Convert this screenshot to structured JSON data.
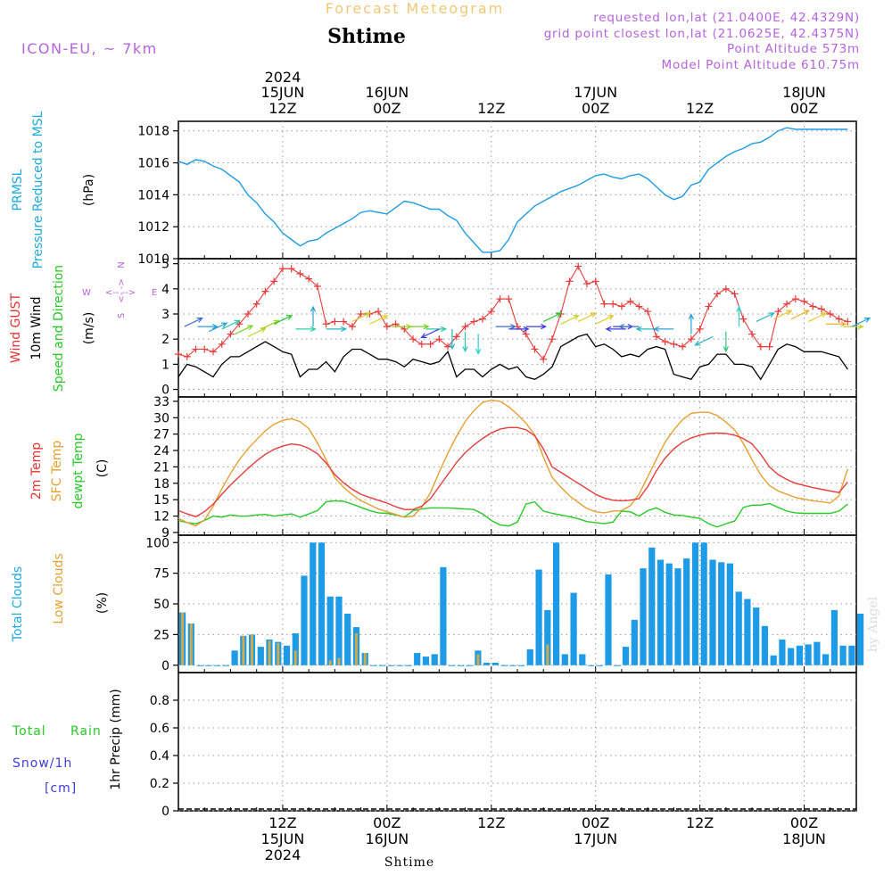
{
  "header": {
    "title": "Forecast Meteogram",
    "location": "Shtime",
    "model": "ICON-EU, ~ 7km",
    "requested": "requested lon,lat (21.0400E, 42.4329N)",
    "gridpoint": "grid point closest lon,lat (21.0625E, 42.4375N)",
    "point_alt": "Point Altitude 573m",
    "model_alt": "Model Point Altitude 610.75m",
    "credit": "by Angel",
    "bottom_label": "Shtime"
  },
  "time_axis": {
    "top_labels": [
      {
        "hour": 12,
        "l1": "15JUN",
        "l2": "12Z",
        "year": "2024"
      },
      {
        "hour": 24,
        "l1": "16JUN",
        "l2": "00Z"
      },
      {
        "hour": 36,
        "l1": "",
        "l2": "12Z"
      },
      {
        "hour": 48,
        "l1": "17JUN",
        "l2": "00Z"
      },
      {
        "hour": 60,
        "l1": "",
        "l2": "12Z"
      },
      {
        "hour": 72,
        "l1": "18JUN",
        "l2": "00Z"
      }
    ],
    "bottom_labels": [
      {
        "hour": 12,
        "l1": "12Z",
        "l2": "15JUN",
        "year": "2024"
      },
      {
        "hour": 24,
        "l1": "00Z",
        "l2": "16JUN"
      },
      {
        "hour": 36,
        "l1": "12Z",
        "l2": ""
      },
      {
        "hour": 48,
        "l1": "00Z",
        "l2": "17JUN"
      },
      {
        "hour": 60,
        "l1": "12Z",
        "l2": ""
      },
      {
        "hour": 72,
        "l1": "00Z",
        "l2": "18JUN"
      }
    ]
  },
  "panel_labels": {
    "pressure": [
      "PRMSL",
      "Pressure Reduced to MSL",
      "(hPa)"
    ],
    "wind": [
      "Wind GUST",
      "10m Wind",
      "Speed and Direction",
      "(m/s)"
    ],
    "compass": {
      "n": "N",
      "s": "S",
      "w": "W",
      "e": "E"
    },
    "temp": [
      "2m Temp",
      "SFC Temp",
      "dewpt Temp",
      "(C)"
    ],
    "clouds": [
      "Total Clouds",
      "Low Clouds",
      "(%)"
    ],
    "precip": [
      "Total",
      "Rain",
      "Snow/1h",
      "[cm]",
      "1hr Precip (mm)"
    ]
  },
  "colors": {
    "pressure": "#1e9be6",
    "gust": "#e63c3c",
    "wind": "#000000",
    "t2m": "#e63c3c",
    "tsfc": "#e6a032",
    "dewpt": "#28c828",
    "total_clouds": "#1e9be6",
    "low_clouds": "#d2aa46",
    "label_cyan": "#1eaadc",
    "label_red": "#e63232",
    "label_green": "#28c828",
    "label_orange": "#e6a032",
    "label_purple": "#b464dc",
    "label_blue": "#3c3cdc",
    "title_tan": "#f0c878"
  },
  "chart_data": [
    {
      "type": "line",
      "name": "pressure",
      "x_range": [
        0,
        78
      ],
      "ylim": [
        1010,
        1018.6
      ],
      "yticks": [
        1010,
        1012,
        1014,
        1016,
        1018
      ],
      "x": [
        0,
        1,
        2,
        3,
        4,
        5,
        6,
        7,
        8,
        9,
        10,
        11,
        12,
        13,
        14,
        15,
        16,
        17,
        18,
        19,
        20,
        21,
        22,
        23,
        24,
        25,
        26,
        27,
        28,
        29,
        30,
        31,
        32,
        33,
        34,
        35,
        36,
        37,
        38,
        39,
        40,
        41,
        42,
        43,
        44,
        45,
        46,
        47,
        48,
        49,
        50,
        51,
        52,
        53,
        54,
        55,
        56,
        57,
        58,
        59,
        60,
        61,
        62,
        63,
        64,
        65,
        66,
        67,
        68,
        69,
        70,
        71,
        72,
        73,
        74,
        75,
        76,
        77
      ],
      "values": [
        1016.1,
        1015.9,
        1016.2,
        1016.1,
        1015.8,
        1015.6,
        1015.2,
        1014.8,
        1014.0,
        1013.5,
        1012.8,
        1012.3,
        1011.6,
        1011.2,
        1010.8,
        1011.1,
        1011.2,
        1011.6,
        1011.9,
        1012.2,
        1012.5,
        1012.9,
        1013.0,
        1012.9,
        1012.8,
        1013.2,
        1013.6,
        1013.5,
        1013.3,
        1013.1,
        1013.1,
        1012.7,
        1012.4,
        1011.6,
        1011.0,
        1010.4,
        1010.4,
        1010.5,
        1011.2,
        1012.3,
        1012.8,
        1013.3,
        1013.6,
        1013.9,
        1014.2,
        1014.4,
        1014.6,
        1014.9,
        1015.2,
        1015.3,
        1015.1,
        1015.0,
        1015.2,
        1015.3,
        1015.0,
        1014.5,
        1014.0,
        1013.7,
        1013.9,
        1014.6,
        1014.8,
        1015.6,
        1016.0,
        1016.4,
        1016.7,
        1016.9,
        1017.2,
        1017.3,
        1017.6,
        1018.0,
        1018.2,
        1018.1,
        1018.1,
        1018.1,
        1018.1,
        1018.1,
        1018.1,
        1018.1
      ]
    },
    {
      "type": "line",
      "name": "wind",
      "x_range": [
        0,
        78
      ],
      "ylim": [
        -0.3,
        5.2
      ],
      "yticks": [
        0,
        1,
        2,
        3,
        4,
        5
      ],
      "x": [
        0,
        1,
        2,
        3,
        4,
        5,
        6,
        7,
        8,
        9,
        10,
        11,
        12,
        13,
        14,
        15,
        16,
        17,
        18,
        19,
        20,
        21,
        22,
        23,
        24,
        25,
        26,
        27,
        28,
        29,
        30,
        31,
        32,
        33,
        34,
        35,
        36,
        37,
        38,
        39,
        40,
        41,
        42,
        43,
        44,
        45,
        46,
        47,
        48,
        49,
        50,
        51,
        52,
        53,
        54,
        55,
        56,
        57,
        58,
        59,
        60,
        61,
        62,
        63,
        64,
        65,
        66,
        67,
        68,
        69,
        70,
        71,
        72,
        73,
        74,
        75,
        76,
        77
      ],
      "gust": [
        1.4,
        1.3,
        1.6,
        1.6,
        1.5,
        1.8,
        2.2,
        2.6,
        3.0,
        3.4,
        3.9,
        4.3,
        4.8,
        4.8,
        4.6,
        4.4,
        4.1,
        2.6,
        2.7,
        2.7,
        2.5,
        3.0,
        3.0,
        3.1,
        2.5,
        2.6,
        2.4,
        2.0,
        1.8,
        1.8,
        2.0,
        1.7,
        2.1,
        2.5,
        2.7,
        2.8,
        3.1,
        3.6,
        3.6,
        2.5,
        2.2,
        1.6,
        1.2,
        2.0,
        3.0,
        4.3,
        4.9,
        4.2,
        4.3,
        3.4,
        3.4,
        3.3,
        3.5,
        3.3,
        3.1,
        2.1,
        1.9,
        1.8,
        1.7,
        2.0,
        2.4,
        3.3,
        3.8,
        4.0,
        3.8,
        2.8,
        2.2,
        1.7,
        1.7,
        3.1,
        3.4,
        3.6,
        3.5,
        3.3,
        3.2,
        3.0,
        2.8,
        2.7
      ],
      "speed": [
        0.5,
        1.0,
        0.9,
        0.7,
        0.5,
        1.0,
        1.3,
        1.3,
        1.5,
        1.7,
        1.9,
        1.7,
        1.5,
        1.4,
        0.5,
        0.8,
        0.8,
        1.1,
        0.7,
        1.3,
        1.6,
        1.6,
        1.4,
        1.2,
        1.2,
        1.1,
        0.9,
        1.2,
        1.1,
        1.0,
        1.1,
        1.5,
        0.5,
        0.8,
        0.8,
        0.5,
        0.8,
        1.0,
        0.8,
        0.9,
        0.5,
        0.4,
        0.6,
        0.9,
        1.7,
        1.9,
        2.1,
        2.2,
        1.7,
        1.8,
        1.6,
        1.3,
        1.4,
        1.3,
        1.6,
        1.7,
        1.6,
        0.6,
        0.5,
        0.4,
        0.9,
        1.0,
        1.4,
        1.4,
        1.0,
        1.0,
        0.9,
        0.4,
        1.0,
        1.6,
        1.8,
        1.7,
        1.5,
        1.5,
        1.5,
        1.4,
        1.3,
        0.8
      ],
      "arrows": [
        {
          "x": 0.7,
          "s": 2.5,
          "dir": "ne",
          "c": "#3c6ad2"
        },
        {
          "x": 2.2,
          "s": 2.5,
          "dir": "e",
          "c": "#2aa0d8"
        },
        {
          "x": 3.5,
          "s": 2.3,
          "dir": "ne",
          "c": "#2aa0d8"
        },
        {
          "x": 5.0,
          "s": 2.4,
          "dir": "ne",
          "c": "#28c8a0"
        },
        {
          "x": 6.5,
          "s": 2.2,
          "dir": "ne",
          "c": "#7ad228"
        },
        {
          "x": 8.0,
          "s": 2.1,
          "dir": "ne",
          "c": "#c8d228"
        },
        {
          "x": 9.5,
          "s": 2.4,
          "dir": "ne",
          "c": "#a0d228"
        },
        {
          "x": 11.0,
          "s": 2.6,
          "dir": "ne",
          "c": "#28c828"
        },
        {
          "x": 13.5,
          "s": 2.4,
          "dir": "e",
          "c": "#2ad2a0"
        },
        {
          "x": 15.5,
          "s": 2.5,
          "dir": "n",
          "c": "#2aa0d8"
        },
        {
          "x": 17.0,
          "s": 2.4,
          "dir": "e",
          "c": "#28b4c8"
        },
        {
          "x": 20.0,
          "s": 2.7,
          "dir": "ne",
          "c": "#c8d228"
        },
        {
          "x": 22.0,
          "s": 2.6,
          "dir": "ne",
          "c": "#e6d228"
        },
        {
          "x": 24.5,
          "s": 2.5,
          "dir": "e",
          "c": "#a0d228"
        },
        {
          "x": 26.5,
          "s": 2.5,
          "dir": "e",
          "c": "#78d228"
        },
        {
          "x": 28.5,
          "s": 2.4,
          "dir": "e",
          "c": "#28c8a0"
        },
        {
          "x": 30.0,
          "s": 2.4,
          "dir": "sw",
          "c": "#3c3cdc"
        },
        {
          "x": 31.5,
          "s": 2.4,
          "dir": "s",
          "c": "#28b4c8"
        },
        {
          "x": 33.0,
          "s": 2.3,
          "dir": "s",
          "c": "#28c8b4"
        },
        {
          "x": 34.5,
          "s": 2.2,
          "dir": "s",
          "c": "#2ad2c8"
        },
        {
          "x": 36.5,
          "s": 2.5,
          "dir": "e",
          "c": "#3c6ad2"
        },
        {
          "x": 38.0,
          "s": 2.4,
          "dir": "e",
          "c": "#3c3cdc"
        },
        {
          "x": 40.0,
          "s": 2.5,
          "dir": "e",
          "c": "#3c3cdc"
        },
        {
          "x": 42.0,
          "s": 2.7,
          "dir": "ne",
          "c": "#28c828"
        },
        {
          "x": 44.0,
          "s": 2.6,
          "dir": "ne",
          "c": "#c8d228"
        },
        {
          "x": 46.0,
          "s": 2.7,
          "dir": "ne",
          "c": "#e6c828"
        },
        {
          "x": 48.0,
          "s": 2.6,
          "dir": "ne",
          "c": "#e6c828"
        },
        {
          "x": 50.0,
          "s": 2.5,
          "dir": "e",
          "c": "#3c3cdc"
        },
        {
          "x": 51.5,
          "s": 2.4,
          "dir": "w",
          "c": "#3c3cdc"
        },
        {
          "x": 53.0,
          "s": 2.5,
          "dir": "w",
          "c": "#3c6ad2"
        },
        {
          "x": 55.0,
          "s": 2.4,
          "dir": "w",
          "c": "#28b4c8"
        },
        {
          "x": 57.0,
          "s": 2.4,
          "dir": "w",
          "c": "#2aa0d8"
        },
        {
          "x": 59.0,
          "s": 2.2,
          "dir": "n",
          "c": "#2aa0d8"
        },
        {
          "x": 61.5,
          "s": 2.1,
          "dir": "sw",
          "c": "#28b4c8"
        },
        {
          "x": 63.0,
          "s": 2.3,
          "dir": "s",
          "c": "#28c878"
        },
        {
          "x": 64.5,
          "s": 2.5,
          "dir": "n",
          "c": "#2ad2c8"
        },
        {
          "x": 66.5,
          "s": 2.7,
          "dir": "ne",
          "c": "#28b4c8"
        },
        {
          "x": 68.5,
          "s": 2.8,
          "dir": "ne",
          "c": "#e6c828"
        },
        {
          "x": 70.5,
          "s": 2.8,
          "dir": "ne",
          "c": "#e6b428"
        },
        {
          "x": 72.5,
          "s": 2.7,
          "dir": "ne",
          "c": "#e6c828"
        },
        {
          "x": 74.5,
          "s": 2.6,
          "dir": "e",
          "c": "#e6b428"
        },
        {
          "x": 76.5,
          "s": 2.5,
          "dir": "e",
          "c": "#c8d228"
        },
        {
          "x": 77.5,
          "s": 2.5,
          "dir": "ne",
          "c": "#2aa0d8"
        }
      ]
    },
    {
      "type": "line",
      "name": "temperature",
      "x_range": [
        0,
        78
      ],
      "ylim": [
        8.5,
        33.8
      ],
      "yticks": [
        9,
        12,
        15,
        18,
        21,
        24,
        27,
        30,
        33
      ],
      "x": [
        0,
        1,
        2,
        3,
        4,
        5,
        6,
        7,
        8,
        9,
        10,
        11,
        12,
        13,
        14,
        15,
        16,
        17,
        18,
        19,
        20,
        21,
        22,
        23,
        24,
        25,
        26,
        27,
        28,
        29,
        30,
        31,
        32,
        33,
        34,
        35,
        36,
        37,
        38,
        39,
        40,
        41,
        42,
        43,
        44,
        45,
        46,
        47,
        48,
        49,
        50,
        51,
        52,
        53,
        54,
        55,
        56,
        57,
        58,
        59,
        60,
        61,
        62,
        63,
        64,
        65,
        66,
        67,
        68,
        69,
        70,
        71,
        72,
        73,
        74,
        75,
        76,
        77
      ],
      "t2m": [
        13.0,
        12.4,
        11.9,
        12.8,
        14.2,
        16.0,
        17.7,
        19.2,
        20.7,
        22.1,
        23.3,
        24.2,
        24.8,
        25.2,
        25.0,
        24.4,
        23.4,
        21.7,
        19.6,
        18.1,
        16.9,
        16.0,
        15.4,
        14.9,
        14.4,
        13.7,
        13.2,
        13.2,
        13.8,
        15.2,
        17.4,
        19.6,
        21.8,
        23.6,
        25.0,
        26.2,
        27.2,
        27.9,
        28.2,
        28.2,
        27.8,
        26.7,
        24.3,
        21.0,
        20.0,
        19.0,
        18.0,
        17.0,
        16.0,
        15.3,
        14.9,
        14.8,
        14.9,
        15.2,
        17.4,
        20.3,
        22.6,
        24.3,
        25.5,
        26.3,
        26.8,
        27.1,
        27.2,
        27.1,
        26.8,
        26.2,
        25.2,
        23.3,
        21.0,
        19.6,
        18.7,
        18.0,
        17.6,
        17.2,
        16.9,
        16.6,
        16.3,
        18.2
      ],
      "tsfc": [
        11.6,
        10.8,
        10.2,
        11.3,
        13.8,
        17.0,
        19.8,
        22.3,
        24.3,
        26.0,
        27.6,
        28.8,
        29.5,
        29.8,
        29.3,
        28.0,
        25.4,
        22.3,
        19.0,
        17.3,
        15.9,
        14.8,
        14.1,
        13.3,
        12.8,
        12.3,
        11.8,
        12.0,
        13.6,
        16.3,
        20.0,
        23.5,
        26.6,
        29.3,
        31.3,
        32.8,
        33.2,
        33.0,
        32.0,
        30.6,
        29.0,
        26.9,
        22.8,
        19.1,
        17.3,
        15.7,
        14.5,
        13.4,
        12.8,
        12.6,
        12.9,
        13.0,
        13.9,
        16.0,
        19.2,
        22.4,
        25.5,
        27.8,
        29.6,
        30.8,
        31.0,
        31.0,
        30.4,
        29.2,
        27.8,
        25.3,
        22.3,
        19.5,
        17.6,
        16.6,
        16.0,
        15.4,
        15.1,
        14.8,
        14.6,
        14.4,
        15.7,
        20.6
      ],
      "dewpt": [
        11.2,
        10.8,
        10.6,
        11.2,
        12.0,
        11.8,
        12.2,
        12.0,
        12.0,
        12.2,
        12.3,
        12.0,
        12.2,
        12.4,
        11.8,
        12.4,
        13.0,
        14.6,
        14.8,
        14.7,
        14.2,
        13.6,
        13.0,
        12.6,
        12.5,
        12.2,
        11.8,
        13.0,
        13.3,
        13.5,
        13.5,
        13.5,
        13.4,
        13.3,
        13.2,
        12.4,
        11.2,
        10.4,
        10.2,
        10.9,
        14.2,
        14.6,
        12.9,
        12.5,
        12.2,
        11.9,
        11.5,
        11.0,
        10.8,
        10.6,
        10.9,
        12.9,
        12.8,
        12.0,
        13.0,
        13.5,
        12.7,
        12.2,
        12.1,
        11.8,
        11.6,
        10.6,
        10.0,
        10.6,
        11.1,
        13.6,
        14.0,
        14.0,
        14.3,
        13.6,
        12.9,
        12.6,
        12.5,
        12.5,
        12.5,
        12.5,
        12.9,
        14.2
      ]
    },
    {
      "type": "bar",
      "name": "clouds",
      "x_range": [
        0,
        78
      ],
      "ylim": [
        -6,
        106
      ],
      "yticks": [
        0,
        25,
        50,
        75,
        100
      ],
      "total": [
        43,
        34,
        0,
        0,
        0,
        0,
        12,
        24,
        25,
        15,
        21,
        19,
        16,
        26,
        73,
        100,
        100,
        56,
        56,
        42,
        31,
        10,
        0,
        0,
        0,
        0,
        0,
        10,
        7,
        9,
        80,
        0,
        0,
        0,
        12,
        2,
        2,
        0,
        0,
        0,
        13,
        78,
        45,
        100,
        9,
        59,
        9,
        0,
        0,
        74,
        0,
        15,
        37,
        79,
        96,
        86,
        83,
        79,
        87,
        100,
        100,
        86,
        84,
        83,
        60,
        54,
        47,
        32,
        8,
        21,
        14,
        16,
        17,
        19,
        9,
        45,
        16,
        16,
        42
      ],
      "low": [
        43,
        34,
        0,
        0,
        0,
        0,
        0,
        24,
        25,
        0,
        20,
        18,
        0,
        12,
        0,
        0,
        0,
        4,
        6,
        0,
        26,
        10,
        0,
        0,
        0,
        0,
        0,
        0,
        0,
        0,
        0,
        0,
        0,
        0,
        9,
        0,
        0,
        0,
        0,
        0,
        0,
        0,
        17,
        0,
        0,
        0,
        0,
        0,
        0,
        0,
        0,
        0,
        0,
        0,
        0,
        0,
        0,
        0,
        0,
        0,
        0,
        0,
        0,
        0,
        0,
        0,
        0,
        0,
        0,
        0,
        0,
        0,
        0,
        0,
        0,
        0,
        0,
        0
      ]
    },
    {
      "type": "line",
      "name": "precipitation",
      "x_range": [
        0,
        78
      ],
      "ylim": [
        0,
        1.0
      ],
      "yticks": [
        0,
        0.2,
        0.4,
        0.6,
        0.8
      ],
      "values": []
    }
  ]
}
